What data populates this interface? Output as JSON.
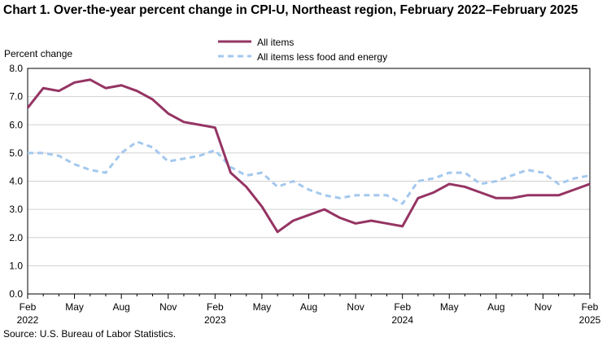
{
  "chart_data": {
    "type": "line",
    "title": "Chart 1. Over-the-year percent change in CPI-U, Northeast region, February 2022–February 2025",
    "ylabel": "Percent change",
    "ylim": [
      0,
      8
    ],
    "yticks": [
      "0.0",
      "1.0",
      "2.0",
      "3.0",
      "4.0",
      "5.0",
      "6.0",
      "7.0",
      "8.0"
    ],
    "ytick_values": [
      0,
      1,
      2,
      3,
      4,
      5,
      6,
      7,
      8
    ],
    "xticks": [
      {
        "index": 0,
        "label": "Feb",
        "year": "2022"
      },
      {
        "index": 3,
        "label": "May",
        "year": ""
      },
      {
        "index": 6,
        "label": "Aug",
        "year": ""
      },
      {
        "index": 9,
        "label": "Nov",
        "year": ""
      },
      {
        "index": 12,
        "label": "Feb",
        "year": "2023"
      },
      {
        "index": 15,
        "label": "May",
        "year": ""
      },
      {
        "index": 18,
        "label": "Aug",
        "year": ""
      },
      {
        "index": 21,
        "label": "Nov",
        "year": ""
      },
      {
        "index": 24,
        "label": "Feb",
        "year": "2024"
      },
      {
        "index": 27,
        "label": "May",
        "year": ""
      },
      {
        "index": 30,
        "label": "Aug",
        "year": ""
      },
      {
        "index": 33,
        "label": "Nov",
        "year": ""
      },
      {
        "index": 36,
        "label": "Feb",
        "year": "2025"
      }
    ],
    "grid": true,
    "legend_position": "top-center",
    "series": [
      {
        "name": "All items",
        "color": "#953463",
        "style": "solid",
        "values": [
          6.6,
          7.3,
          7.2,
          7.5,
          7.6,
          7.3,
          7.4,
          7.2,
          6.9,
          6.4,
          6.1,
          6.0,
          5.9,
          4.3,
          3.8,
          3.1,
          2.2,
          2.6,
          2.8,
          3.0,
          2.7,
          2.5,
          2.6,
          2.5,
          2.4,
          3.4,
          3.6,
          3.9,
          3.8,
          3.6,
          3.4,
          3.4,
          3.5,
          3.5,
          3.5,
          3.7,
          3.9
        ]
      },
      {
        "name": "All items less food and energy",
        "color": "#a4c8ee",
        "style": "dashed",
        "values": [
          5.0,
          5.0,
          4.9,
          4.6,
          4.4,
          4.3,
          5.0,
          5.4,
          5.2,
          4.7,
          4.8,
          4.9,
          5.1,
          4.5,
          4.2,
          4.3,
          3.8,
          4.0,
          3.7,
          3.5,
          3.4,
          3.5,
          3.5,
          3.5,
          3.2,
          4.0,
          4.1,
          4.3,
          4.3,
          3.9,
          4.0,
          4.2,
          4.4,
          4.3,
          3.9,
          4.1,
          4.2
        ]
      }
    ]
  },
  "source": "Source: U.S. Bureau of Labor Statistics."
}
